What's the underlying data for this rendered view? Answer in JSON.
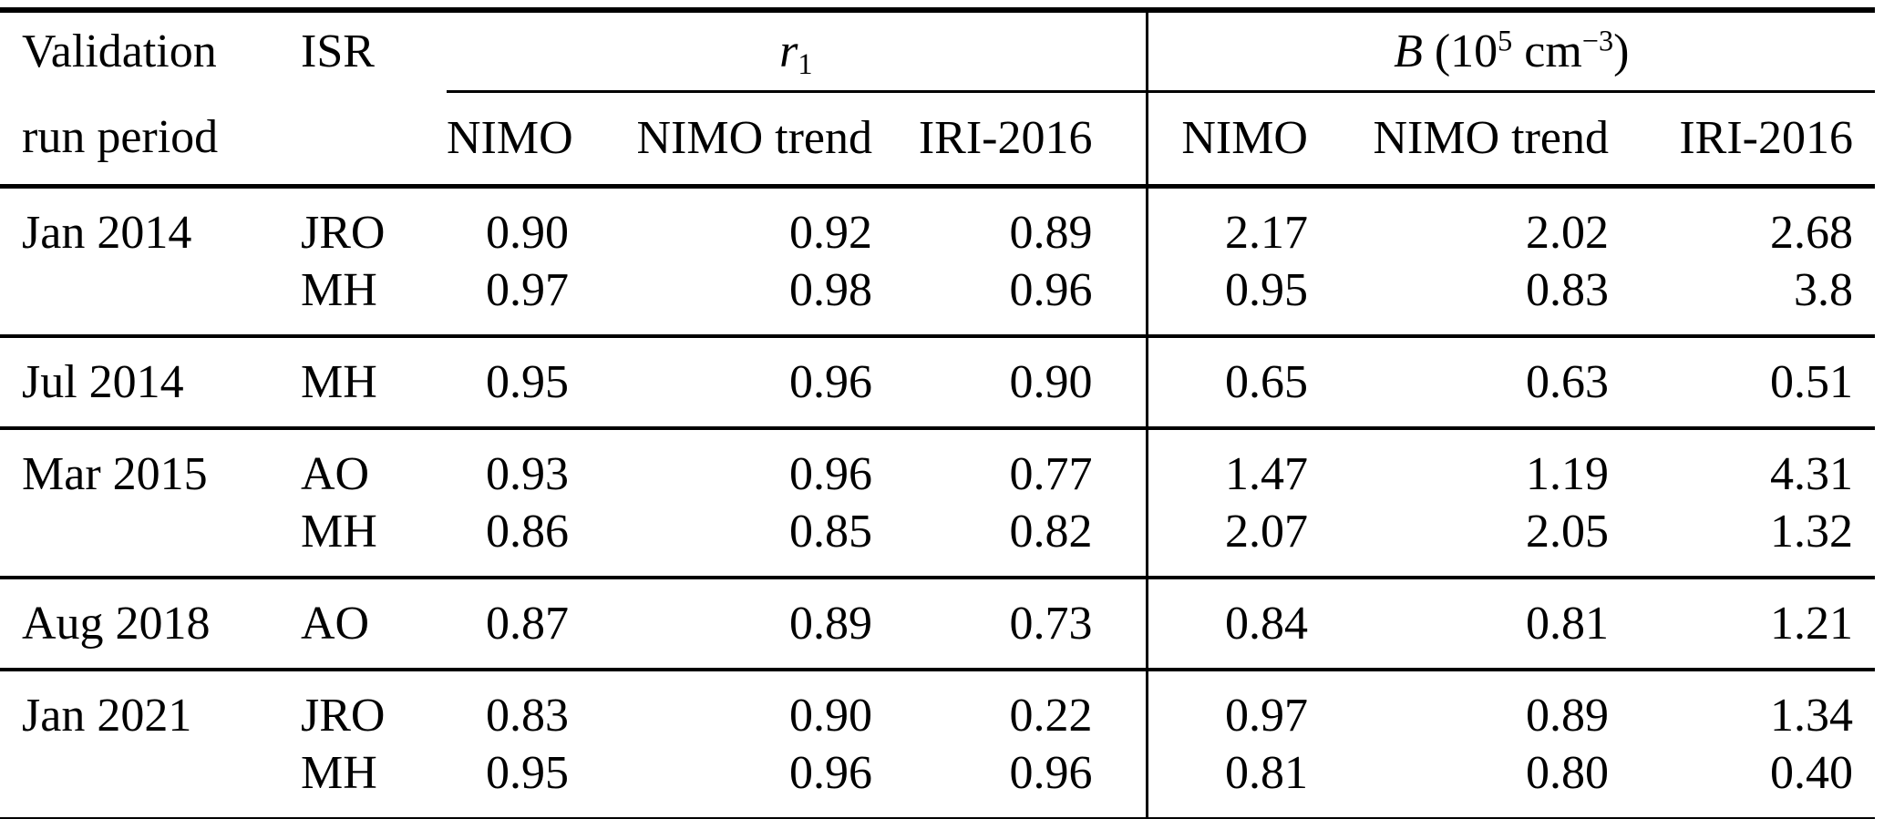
{
  "table": {
    "header": {
      "col_period_line1": "Validation",
      "col_period_line2": "run period",
      "col_isr": "ISR",
      "group_r1": {
        "base": "r",
        "sub": "1"
      },
      "group_B": {
        "base": "B",
        "pre_paren": " (10",
        "exponent": "5",
        "unit": " cm",
        "unit_exponent": "−3",
        "close_paren": ")"
      },
      "subcols": [
        "NIMO",
        "NIMO trend",
        "IRI-2016"
      ]
    },
    "groups": [
      {
        "period": "Jan 2014",
        "rows": [
          {
            "isr": "JRO",
            "r1": [
              "0.90",
              "0.92",
              "0.89"
            ],
            "B": [
              "2.17",
              "2.02",
              "2.68"
            ]
          },
          {
            "isr": "MH",
            "r1": [
              "0.97",
              "0.98",
              "0.96"
            ],
            "B": [
              "0.95",
              "0.83",
              "3.8"
            ]
          }
        ]
      },
      {
        "period": "Jul 2014",
        "rows": [
          {
            "isr": "MH",
            "r1": [
              "0.95",
              "0.96",
              "0.90"
            ],
            "B": [
              "0.65",
              "0.63",
              "0.51"
            ]
          }
        ]
      },
      {
        "period": "Mar 2015",
        "rows": [
          {
            "isr": "AO",
            "r1": [
              "0.93",
              "0.96",
              "0.77"
            ],
            "B": [
              "1.47",
              "1.19",
              "4.31"
            ]
          },
          {
            "isr": "MH",
            "r1": [
              "0.86",
              "0.85",
              "0.82"
            ],
            "B": [
              "2.07",
              "2.05",
              "1.32"
            ]
          }
        ]
      },
      {
        "period": "Aug 2018",
        "rows": [
          {
            "isr": "AO",
            "r1": [
              "0.87",
              "0.89",
              "0.73"
            ],
            "B": [
              "0.84",
              "0.81",
              "1.21"
            ]
          }
        ]
      },
      {
        "period": "Jan 2021",
        "rows": [
          {
            "isr": "JRO",
            "r1": [
              "0.83",
              "0.90",
              "0.22"
            ],
            "B": [
              "0.97",
              "0.89",
              "1.34"
            ]
          },
          {
            "isr": "MH",
            "r1": [
              "0.95",
              "0.96",
              "0.96"
            ],
            "B": [
              "0.81",
              "0.80",
              "0.40"
            ]
          }
        ]
      }
    ],
    "colors": {
      "text": "#000000",
      "background": "#ffffff",
      "rule": "#000000"
    }
  }
}
